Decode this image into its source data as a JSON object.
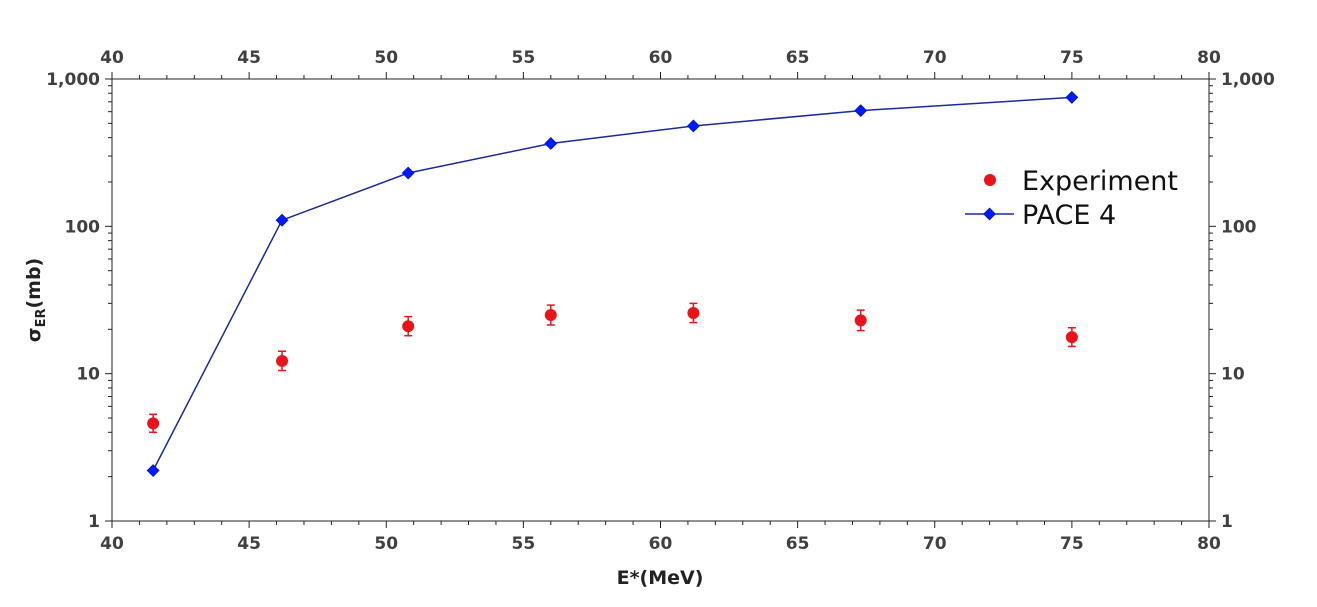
{
  "chart_data": {
    "type": "scatter",
    "xlabel": "E*(MeV)",
    "ylabel_main": "σ",
    "ylabel_sub": "ER",
    "ylabel_unit": "(mb)",
    "xlim": [
      40,
      80
    ],
    "ylim": [
      1,
      1000
    ],
    "yscale": "log",
    "x_ticks": [
      40,
      45,
      50,
      55,
      60,
      65,
      70,
      75,
      80
    ],
    "x_tick_labels": [
      "40",
      "45",
      "50",
      "55",
      "60",
      "65",
      "70",
      "75",
      "80"
    ],
    "y_ticks": [
      1,
      10,
      100,
      1000
    ],
    "y_tick_labels": [
      "1",
      "10",
      "100",
      "1,000"
    ],
    "grid": false,
    "legend_position": "right",
    "series": [
      {
        "name": "Experiment",
        "kind": "points-with-errorbars",
        "color": "#e8141a",
        "x": [
          41.5,
          46.2,
          50.8,
          56.0,
          61.2,
          67.3,
          75.0
        ],
        "y": [
          4.6,
          12.2,
          21.0,
          25.0,
          25.8,
          23.0,
          17.7
        ],
        "y_err_low": [
          0.6,
          1.7,
          2.9,
          3.6,
          3.6,
          3.4,
          2.4
        ],
        "y_err_high": [
          0.7,
          2.0,
          3.4,
          4.2,
          4.2,
          4.0,
          2.8
        ]
      },
      {
        "name": "PACE 4",
        "kind": "line-with-markers",
        "color": "#0019ff",
        "line_color": "#1a2a9a",
        "x": [
          41.5,
          46.2,
          50.8,
          56.0,
          61.2,
          67.3,
          75.0
        ],
        "y": [
          2.2,
          110,
          230,
          365,
          480,
          610,
          750
        ]
      }
    ]
  }
}
